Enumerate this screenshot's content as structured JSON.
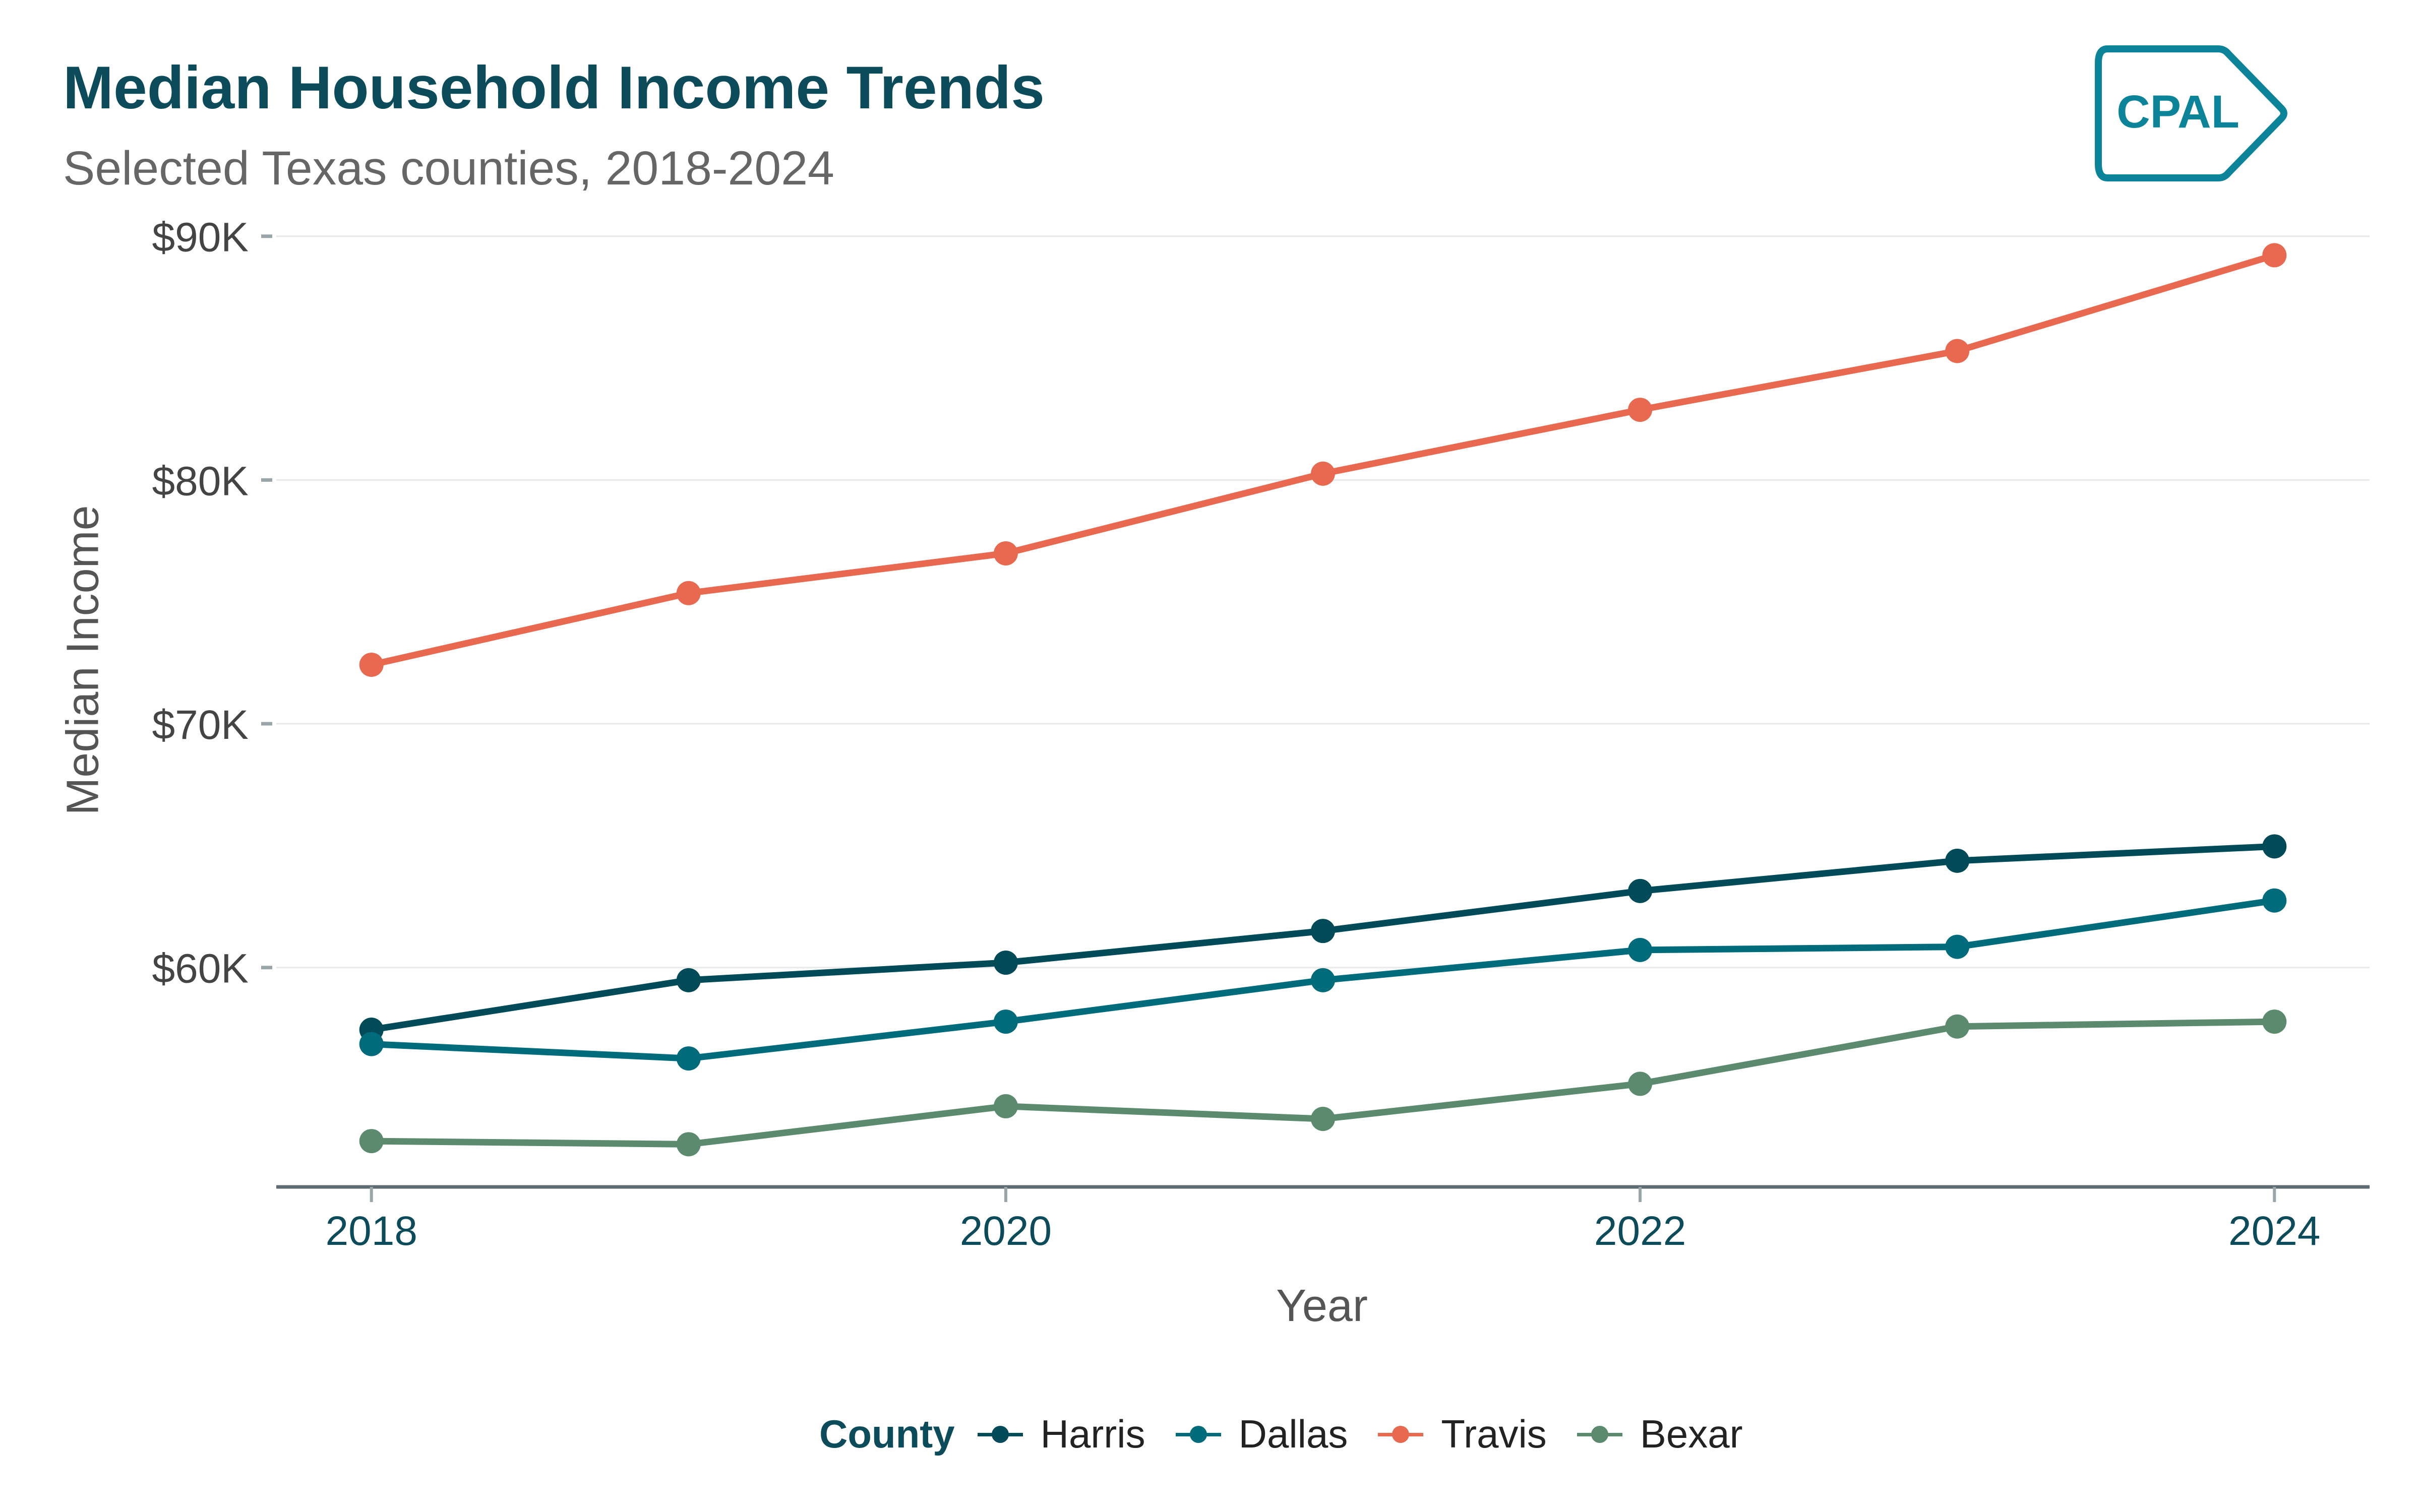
{
  "header": {
    "title": "Median Household Income Trends",
    "subtitle": "Selected Texas counties, 2018-2024",
    "logo_text": "CPAL",
    "logo_color": "#0B8399"
  },
  "chart_data": {
    "type": "line",
    "title": "Median Household Income Trends",
    "subtitle": "Selected Texas counties, 2018-2024",
    "xlabel": "Year",
    "ylabel": "Median Income",
    "x": [
      2018,
      2019,
      2020,
      2021,
      2022,
      2023,
      2024
    ],
    "x_ticks": [
      2018,
      2020,
      2022,
      2024
    ],
    "x_tick_labels": [
      "2018",
      "2020",
      "2022",
      "2024"
    ],
    "xlim": [
      2017.7,
      2024.3
    ],
    "y_ticks": [
      60000,
      70000,
      80000,
      90000
    ],
    "y_tick_labels": [
      "$60K",
      "$70K",
      "$80K",
      "$90K"
    ],
    "ylim": [
      51000,
      90800
    ],
    "grid": "horizontal major",
    "legend": {
      "title": "County",
      "position": "bottom"
    },
    "series": [
      {
        "name": "Harris",
        "color": "#004B57",
        "values": [
          57450,
          59480,
          60200,
          61500,
          63140,
          64380,
          64970
        ]
      },
      {
        "name": "Dallas",
        "color": "#006B7A",
        "values": [
          56860,
          56270,
          57780,
          59480,
          60720,
          60850,
          62750
        ]
      },
      {
        "name": "Travis",
        "color": "#E8694F",
        "values": [
          72420,
          75360,
          76990,
          80260,
          82880,
          85290,
          89220
        ]
      },
      {
        "name": "Bexar",
        "color": "#5C8A6E",
        "values": [
          52880,
          52750,
          54310,
          53790,
          55230,
          57580,
          57780
        ]
      }
    ]
  }
}
